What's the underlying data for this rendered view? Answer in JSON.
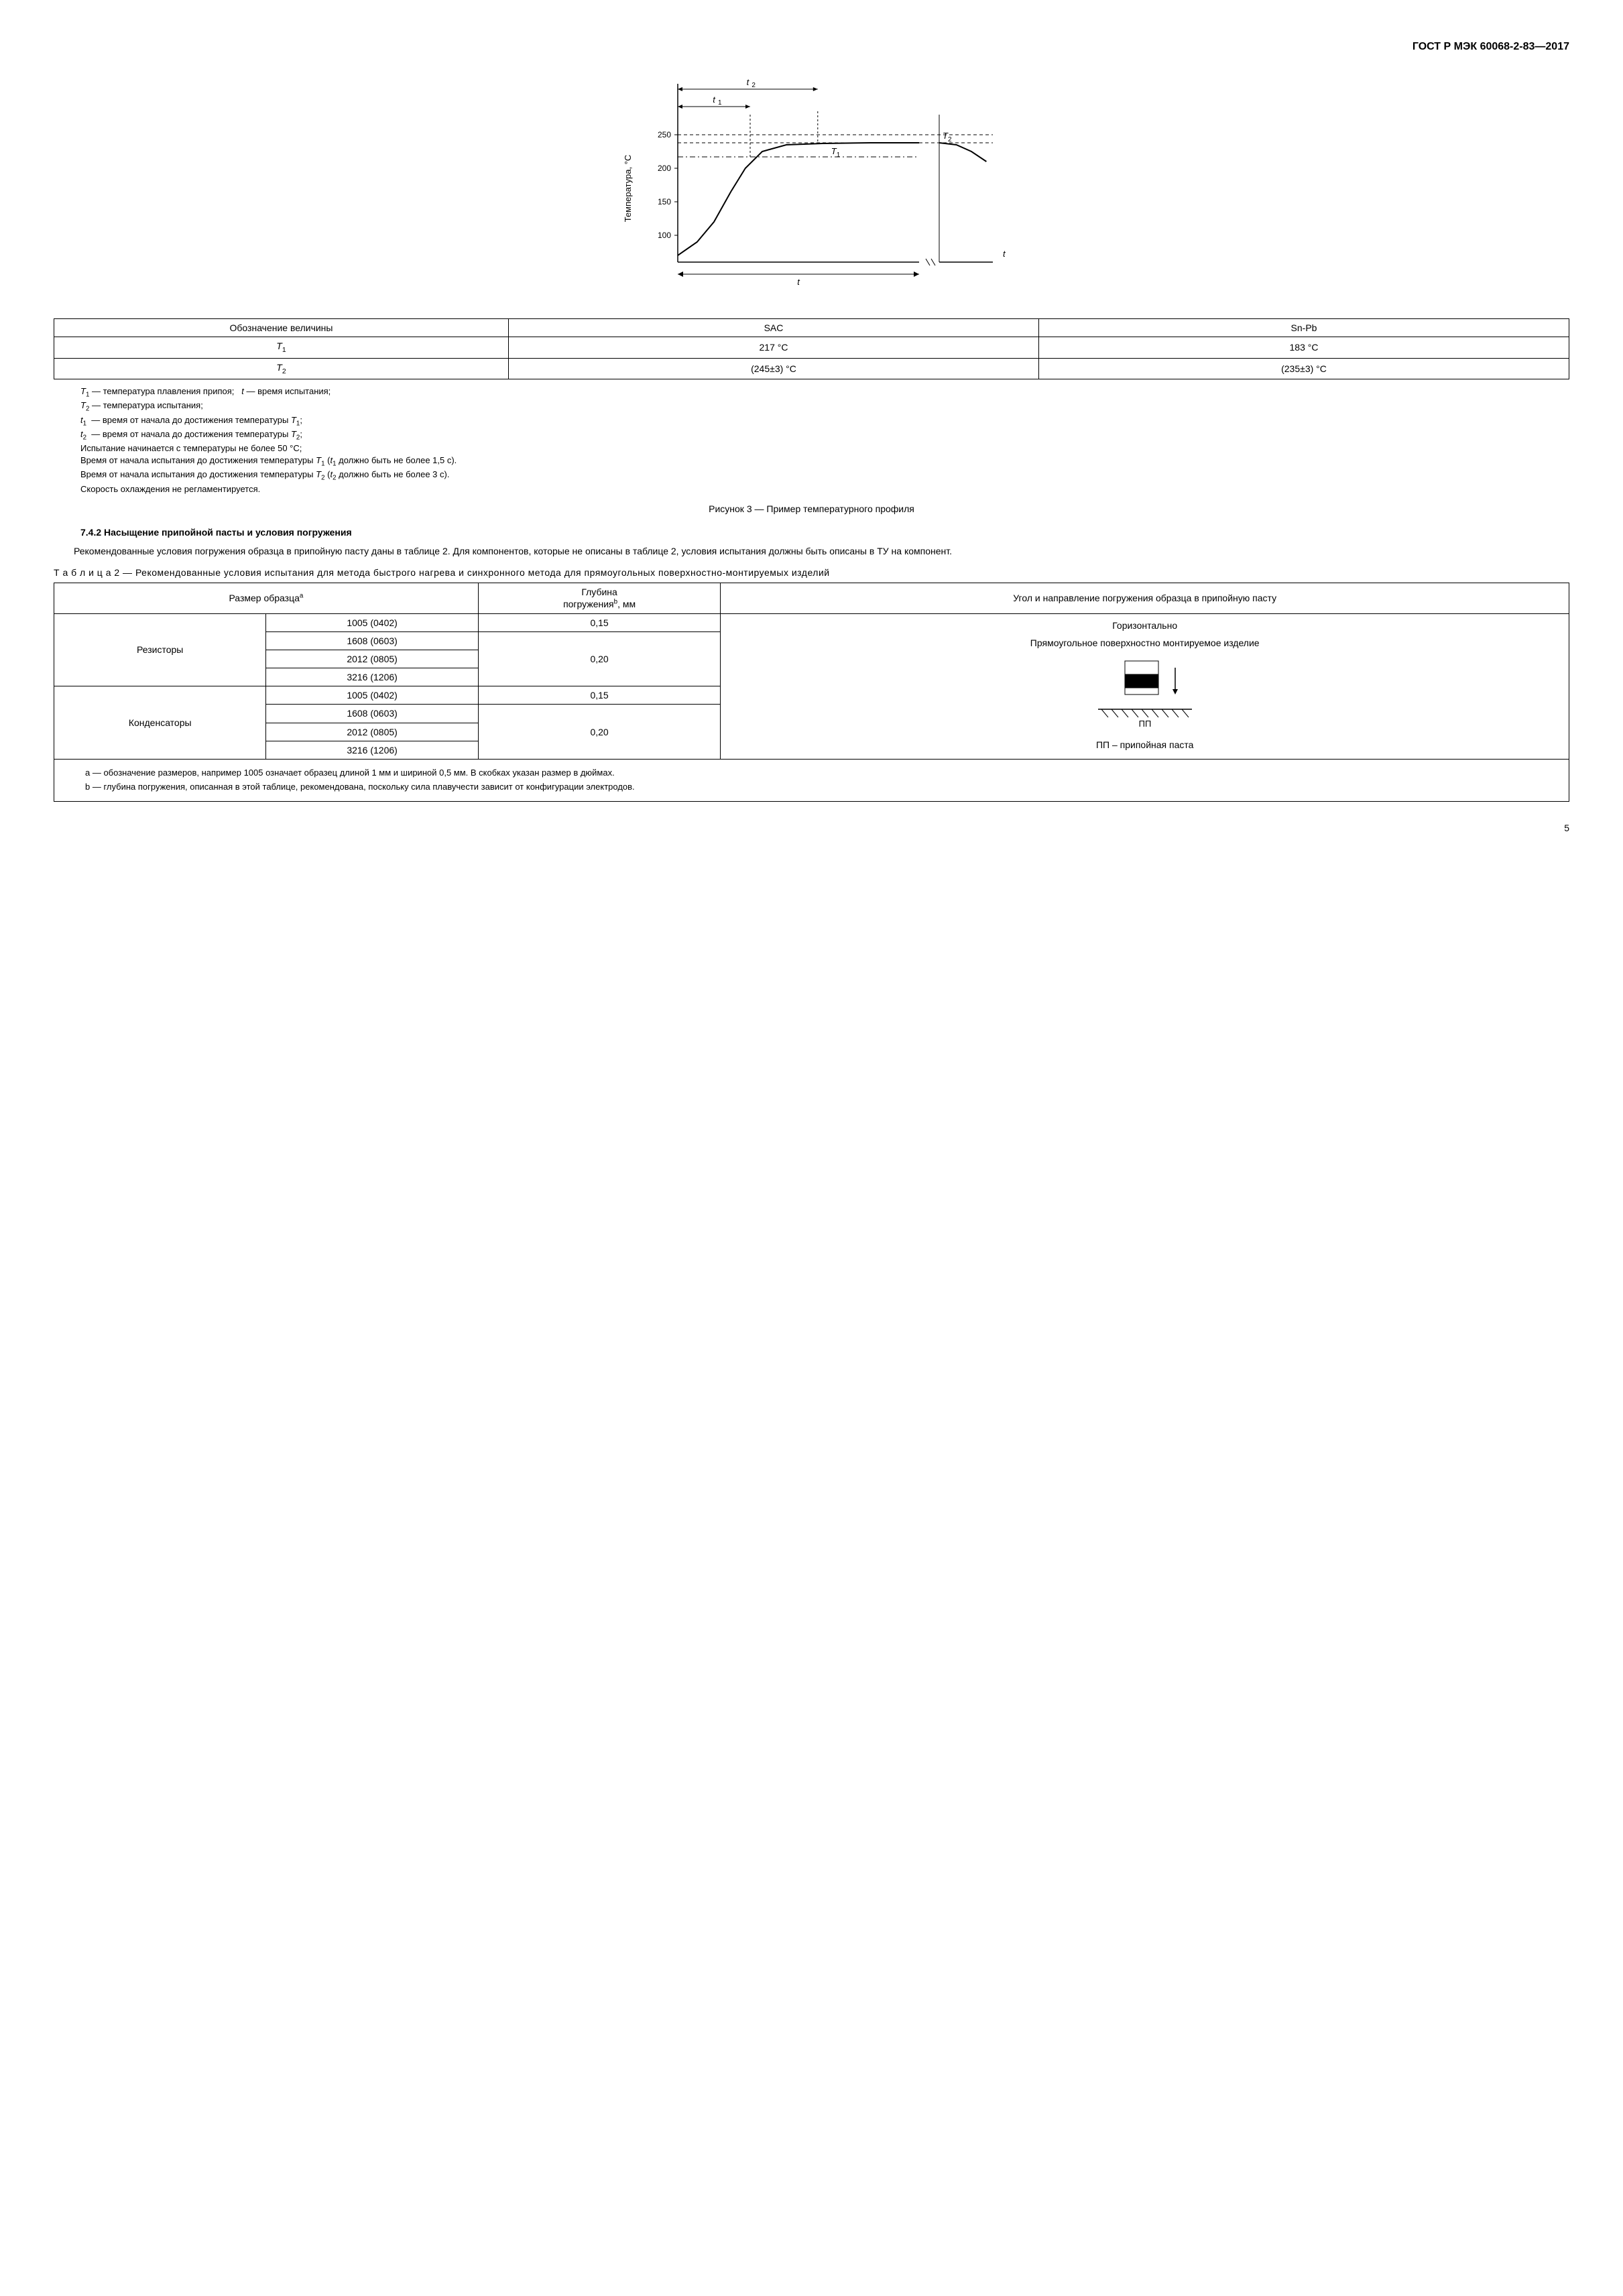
{
  "header": "ГОСТ Р МЭК 60068-2-83—2017",
  "chart": {
    "type": "line",
    "ylabel": "Температура, °С",
    "xlabel_main": "t",
    "xlabel_right": "t",
    "yticks": [
      100,
      150,
      200,
      250
    ],
    "ylim": [
      60,
      280
    ],
    "t1_label": "t₁",
    "t2_label": "t₂",
    "T1_label": "T₁",
    "T2_label": "T₂",
    "colors": {
      "axis": "#000000",
      "curve": "#000000",
      "dashed": "#000000",
      "background": "#ffffff"
    },
    "curve_points_left": [
      [
        0,
        70
      ],
      [
        8,
        90
      ],
      [
        15,
        120
      ],
      [
        22,
        165
      ],
      [
        28,
        200
      ],
      [
        35,
        225
      ],
      [
        45,
        235
      ],
      [
        60,
        237
      ],
      [
        80,
        238
      ],
      [
        100,
        238
      ]
    ],
    "curve_points_right_drop": [
      [
        0,
        238
      ],
      [
        8,
        235
      ],
      [
        15,
        225
      ],
      [
        22,
        210
      ]
    ],
    "T1_y": 217,
    "T2_y": 238,
    "t1_x": 30,
    "t2_x": 58
  },
  "table1": {
    "headers": [
      "Обозначение величины",
      "SAC",
      "Sn-Pb"
    ],
    "rows": [
      [
        "T₁",
        "217 °С",
        "183 °С"
      ],
      [
        "T₂",
        "(245±3) °С",
        "(235±3) °С"
      ]
    ]
  },
  "legend": [
    "T₁ — температура плавления припоя;   t — время испытания;",
    "T₂ — температура испытания;",
    "t₁  — время от начала до достижения температуры T₁;",
    "t₂  — время от начала до достижения температуры T₂;",
    "Испытание начинается с температуры не более 50 °С;",
    "Время от начала испытания до достижения температуры T₁ (t₁ должно быть не более 1,5 с).",
    "Время от начала испытания до достижения температуры T₂ (t₂ должно быть не более 3 с).",
    "Скорость охлаждения не регламентируется."
  ],
  "figcaption": "Рисунок 3 — Пример температурного профиля",
  "section_heading": "7.4.2 Насыщение припойной пасты и условия погружения",
  "paragraph": "Рекомендованные условия погружения образца в припойную пасту даны в таблице 2. Для компонентов, которые не описаны в таблице 2, условия испытания должны быть описаны в ТУ на компонент.",
  "table2_caption": "Т а б л и ц а   2 — Рекомендованные условия испытания для метода быстрого нагрева и синхронного метода для прямоугольных поверхностно-монтируемых изделий",
  "table2": {
    "headers": [
      "Размер образцаᵃ",
      "Глубина погруженияᵇ, мм",
      "Угол и направление погружения образца в припойную пасту"
    ],
    "group1_label": "Резисторы",
    "group2_label": "Конденсаторы",
    "sizes": [
      "1005 (0402)",
      "1608 (0603)",
      "2012 (0805)",
      "3216 (1206)"
    ],
    "depth_small": "0,15",
    "depth_large": "0,20",
    "orientation_title": "Горизонтально",
    "orientation_sub": "Прямоугольное поверхностно монтируемое изделие",
    "pp_label": "ПП",
    "pp_desc": "ПП – припойная паста"
  },
  "footnotes": [
    "a — обозначение размеров, например 1005 означает образец длиной 1 мм и шириной 0,5 мм. В скобках указан размер в дюймах.",
    "b — глубина погружения, описанная в этой таблице, рекомендована, поскольку сила плавучести зависит от конфигурации электродов."
  ],
  "page_number": "5"
}
